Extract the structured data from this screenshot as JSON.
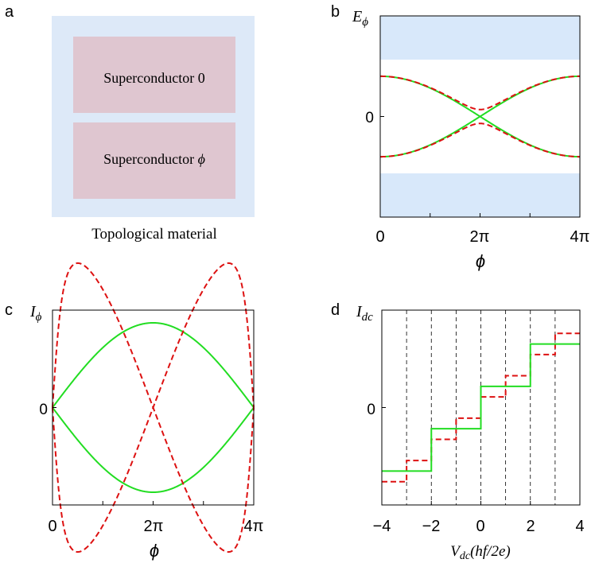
{
  "colors": {
    "light_blue": "#dde9f8",
    "pink": "#dfc6d0",
    "frame": "#000000",
    "green": "#22dd22",
    "red": "#dd1111",
    "band": "#d8e8fa"
  },
  "panel_a": {
    "label": "a",
    "block_top": "Superconductor 0",
    "block_bottom_prefix": "Superconductor ",
    "block_bottom_symbol": "ϕ",
    "caption": "Topological material"
  },
  "panel_b": {
    "label": "b",
    "y_label": "E",
    "y_label_sub": "ϕ",
    "y_tick": "0",
    "x_ticks": [
      "0",
      "2π",
      "4π"
    ],
    "x_label": "ϕ"
  },
  "panel_c": {
    "label": "c",
    "y_label": "I",
    "y_label_sub": "ϕ",
    "y_tick": "0",
    "x_ticks": [
      "0",
      "2π",
      "4π"
    ],
    "x_label": "ϕ"
  },
  "panel_d": {
    "label": "d",
    "y_label": "I",
    "y_label_sub": "dc",
    "y_tick": "0",
    "x_ticks": [
      "−4",
      "−2",
      "0",
      "2",
      "4"
    ],
    "x_label_main": "V",
    "x_label_sub": "dc",
    "x_label_rest": "(hf/2e)"
  },
  "chart_data": [
    {
      "panel": "b",
      "type": "line",
      "x_range": [
        0,
        12.566
      ],
      "y_range": [
        -1.45,
        1.45
      ],
      "gap_band_edges": [
        0.82,
        -0.82
      ],
      "series": [
        {
          "style": "solid",
          "color": "#22dd22",
          "formula": "±0.58·|cos(ϕ/4)|"
        },
        {
          "style": "dashed",
          "color": "#dd1111",
          "formula": "±sqrt(0.58²·cos²(ϕ/4)+0.1²·sin²(ϕ/4))"
        }
      ]
    },
    {
      "panel": "c",
      "type": "line",
      "x_range": [
        0,
        12.566
      ],
      "y_range": [
        -1.15,
        1.15
      ],
      "series": [
        {
          "style": "solid",
          "color": "#22dd22",
          "formula": "±sin(ϕ/4)"
        },
        {
          "style": "dashed",
          "color": "#dd1111",
          "formula": "±sin(ϕ/2)/sqrt(1−0.97·cos²(ϕ/4))"
        }
      ]
    },
    {
      "panel": "d",
      "type": "line",
      "x_range": [
        -4,
        4
      ],
      "y_range": [
        -4.6,
        4.6
      ],
      "dashed_gridlines_x": [
        -3,
        -2,
        -1,
        0,
        1,
        2,
        3
      ],
      "series": [
        {
          "style": "solid",
          "color": "#22dd22",
          "steps_x": [
            -4,
            -2,
            0,
            2,
            4
          ],
          "levels": [
            -3,
            -1,
            1,
            3
          ]
        },
        {
          "style": "dashed",
          "color": "#dd1111",
          "steps_x": [
            -4,
            -3,
            -2,
            -1,
            0,
            1,
            2,
            3,
            4
          ],
          "levels": [
            -3.5,
            -2.5,
            -1.5,
            -0.5,
            0.5,
            1.5,
            2.5,
            3.5
          ]
        }
      ]
    }
  ]
}
